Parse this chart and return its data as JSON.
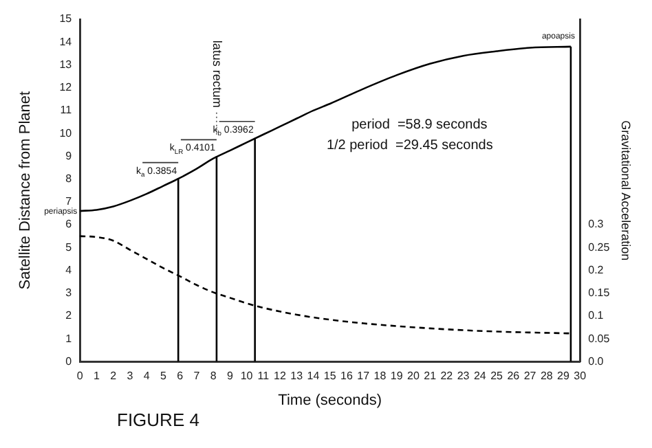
{
  "chart_data": {
    "type": "line",
    "xlabel": "Time (seconds)",
    "ylabel": "Satellite Distance from Planet",
    "y2label": "Gravitational Acceleration",
    "x": [
      0,
      1,
      2,
      3,
      4,
      5,
      6,
      7,
      8,
      9,
      10,
      11,
      12,
      13,
      14,
      15,
      17,
      19,
      21,
      23,
      25,
      27,
      29.45
    ],
    "series": [
      {
        "color": "#000000",
        "line_style": "solid",
        "values": [
          6.6,
          6.65,
          6.8,
          7.05,
          7.35,
          7.7,
          8.05,
          8.45,
          8.9,
          9.25,
          9.6,
          9.95,
          10.3,
          10.65,
          11.0,
          11.3,
          11.95,
          12.55,
          13.05,
          13.4,
          13.6,
          13.75,
          13.8
        ]
      },
      {
        "color": "#000000",
        "line_style": "dashed",
        "axis": "y2",
        "values": [
          0.275,
          0.273,
          0.265,
          0.245,
          0.225,
          0.205,
          0.187,
          0.168,
          0.152,
          0.14,
          0.128,
          0.118,
          0.11,
          0.103,
          0.097,
          0.092,
          0.084,
          0.078,
          0.073,
          0.069,
          0.066,
          0.064,
          0.062
        ]
      },
      {
        "color": "#000000",
        "line_style": "solid",
        "x": [
          5.9,
          5.9
        ],
        "values": [
          0,
          8.0
        ]
      },
      {
        "color": "#000000",
        "line_style": "solid",
        "x": [
          8.2,
          8.2
        ],
        "values": [
          0,
          9.0
        ]
      },
      {
        "color": "#000000",
        "line_style": "solid",
        "x": [
          10.5,
          10.5
        ],
        "values": [
          0,
          9.8
        ]
      },
      {
        "color": "#000000",
        "line_style": "solid",
        "x": [
          29.45,
          29.45
        ],
        "values": [
          0,
          13.8
        ]
      }
    ],
    "xlim": [
      0,
      30
    ],
    "xticks": [
      0,
      1,
      2,
      3,
      4,
      5,
      6,
      7,
      8,
      9,
      10,
      11,
      12,
      13,
      14,
      15,
      16,
      17,
      18,
      19,
      20,
      21,
      22,
      23,
      24,
      25,
      26,
      27,
      28,
      29,
      30
    ],
    "ylim": [
      0,
      15
    ],
    "yticks": [
      0,
      1,
      2,
      3,
      4,
      5,
      6,
      7,
      8,
      9,
      10,
      11,
      12,
      13,
      14,
      15
    ],
    "y2lim": [
      0,
      0.75
    ],
    "y2ticks": [
      {
        "value": 0,
        "label": "0.0"
      },
      0.05,
      0.1,
      0.15,
      0.2,
      0.25,
      0.3
    ],
    "grid": false,
    "legend": false,
    "marker": "none",
    "annotations": [
      {
        "text": "periapsis",
        "x": 0,
        "y": 6.6
      },
      {
        "text": "apoapsis",
        "x": 29.45,
        "y": 13.8
      },
      {
        "text": "k$_{a}$ 0.3854",
        "x": 5.9,
        "y": 8.0
      },
      {
        "text": "k$_{LR}$ 0.4101",
        "x": 8.2,
        "y": 9.0
      },
      {
        "text": "k$_{b}$ 0.3962",
        "x": 10.5,
        "y": 9.8
      },
      "latus rectum",
      "period  =58.9 seconds",
      "1/2 period  =29.45 seconds",
      "FIGURE 4"
    ]
  }
}
